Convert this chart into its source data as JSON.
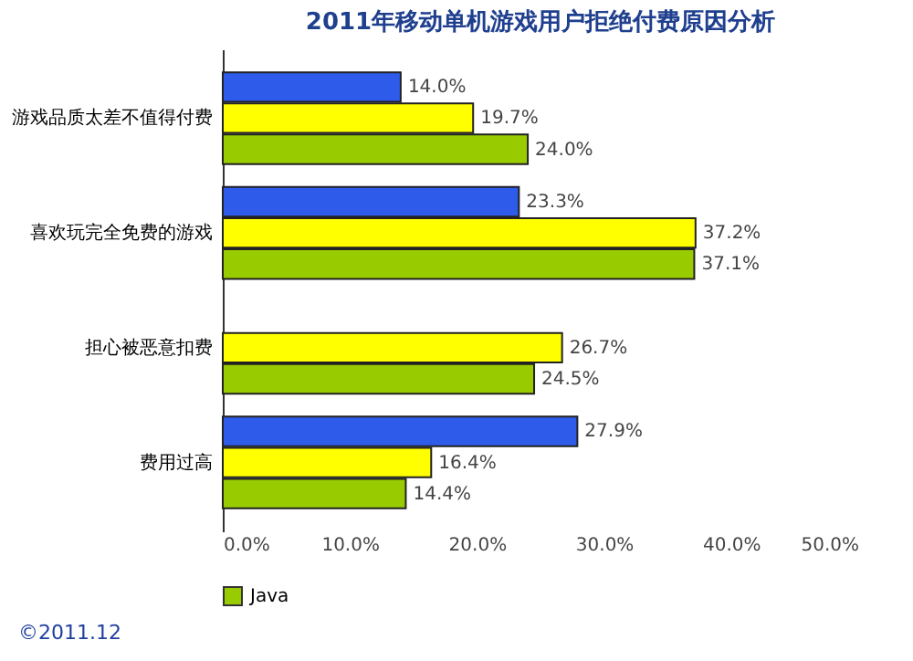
{
  "chart_data": {
    "type": "bar",
    "orientation": "horizontal",
    "title": "2011年移动单机游戏用户拒绝付费原因分析",
    "categories": [
      "游戏品质太差不值得付费",
      "喜欢玩完全免费的游戏",
      "担心被恶意扣费",
      "费用过高"
    ],
    "series": [
      {
        "color": "#2f5bea",
        "values": [
          14.0,
          23.3,
          null,
          27.9
        ],
        "value_labels": [
          "14.0%",
          "23.3%",
          null,
          "27.9%"
        ]
      },
      {
        "color": "#ffff00",
        "values": [
          19.7,
          37.2,
          26.7,
          16.4
        ],
        "value_labels": [
          "19.7%",
          "37.2%",
          "26.7%",
          "16.4%"
        ]
      },
      {
        "name": "Java",
        "color": "#99cc00",
        "values": [
          24.0,
          37.1,
          24.5,
          14.4
        ],
        "value_labels": [
          "24.0%",
          "37.1%",
          "24.5%",
          "14.4%"
        ]
      }
    ],
    "xlim": [
      0,
      50
    ],
    "xticks": [
      {
        "value": 0,
        "label": "0.0%"
      },
      {
        "value": 10,
        "label": "10.0%"
      },
      {
        "value": 20,
        "label": "20.0%"
      },
      {
        "value": 30,
        "label": "30.0%"
      },
      {
        "value": 40,
        "label": "40.0%"
      },
      {
        "value": 50,
        "label": "50.0%"
      }
    ],
    "legend": "bottom",
    "annotations": [
      "©2011.12"
    ]
  }
}
